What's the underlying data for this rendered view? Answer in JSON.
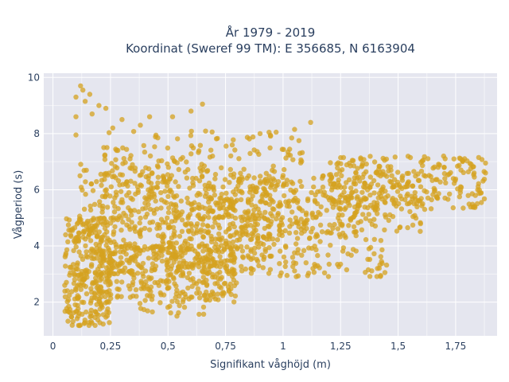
{
  "chart_data": {
    "type": "scatter",
    "title_lines": [
      "År 1979 - 2019",
      "Koordinat (Sweref 99 TM): E 356685, N 6163904"
    ],
    "xlabel": "Signifikant våghöjd (m)",
    "ylabel": "Vågperiod (s)",
    "xlim": [
      -0.04,
      1.93
    ],
    "ylim": [
      0.8,
      10.15
    ],
    "x_ticks": [
      0,
      0.25,
      0.5,
      0.75,
      1.0,
      1.25,
      1.5,
      1.75
    ],
    "x_tick_labels": [
      "0",
      "0,25",
      "0,5",
      "0,75",
      "1",
      "1,25",
      "1,5",
      "1,75"
    ],
    "y_ticks": [
      2,
      4,
      6,
      8,
      10
    ],
    "y_tick_labels": [
      "2",
      "4",
      "6",
      "8",
      "10"
    ],
    "grid": true,
    "colors": {
      "marker": "#d4a21f",
      "plot_bg": "#e5e6ef",
      "text": "#2a3f5f"
    },
    "clusters": [
      {
        "x": [
          0.05,
          0.25
        ],
        "y": [
          1.15,
          5.0
        ]
      },
      {
        "x": [
          0.1,
          0.7
        ],
        "y": [
          1.5,
          7.4
        ]
      },
      {
        "x": [
          0.2,
          0.95
        ],
        "y": [
          3.0,
          6.8
        ]
      },
      {
        "x": [
          0.2,
          1.1
        ],
        "y": [
          3.4,
          8.1
        ]
      },
      {
        "x": [
          0.2,
          0.8
        ],
        "y": [
          2.0,
          4.0
        ]
      },
      {
        "x": [
          0.5,
          1.45
        ],
        "y": [
          2.9,
          5.7
        ]
      },
      {
        "x": [
          0.7,
          1.6
        ],
        "y": [
          4.4,
          6.5
        ]
      },
      {
        "x": [
          1.2,
          1.88
        ],
        "y": [
          5.3,
          7.2
        ]
      }
    ],
    "outliers": [
      {
        "x": 0.12,
        "y": 9.7
      },
      {
        "x": 0.13,
        "y": 9.55
      },
      {
        "x": 0.16,
        "y": 9.4
      },
      {
        "x": 0.1,
        "y": 9.3
      },
      {
        "x": 0.14,
        "y": 9.15
      },
      {
        "x": 0.2,
        "y": 9.0
      },
      {
        "x": 0.17,
        "y": 8.7
      },
      {
        "x": 0.23,
        "y": 8.9
      },
      {
        "x": 0.1,
        "y": 8.6
      },
      {
        "x": 0.26,
        "y": 8.2
      },
      {
        "x": 0.3,
        "y": 8.5
      },
      {
        "x": 0.42,
        "y": 8.6
      },
      {
        "x": 0.52,
        "y": 8.6
      },
      {
        "x": 0.6,
        "y": 8.8
      },
      {
        "x": 0.65,
        "y": 9.05
      },
      {
        "x": 0.38,
        "y": 8.3
      },
      {
        "x": 1.12,
        "y": 8.4
      },
      {
        "x": 1.05,
        "y": 8.15
      },
      {
        "x": 0.97,
        "y": 8.05
      },
      {
        "x": 0.9,
        "y": 8.0
      },
      {
        "x": 0.1,
        "y": 7.95
      },
      {
        "x": 1.85,
        "y": 7.15
      },
      {
        "x": 1.78,
        "y": 7.05
      },
      {
        "x": 1.88,
        "y": 6.95
      },
      {
        "x": 1.83,
        "y": 6.6
      },
      {
        "x": 1.88,
        "y": 6.6
      },
      {
        "x": 1.7,
        "y": 6.8
      },
      {
        "x": 1.74,
        "y": 6.4
      },
      {
        "x": 1.15,
        "y": 3.3
      },
      {
        "x": 1.13,
        "y": 3.2
      },
      {
        "x": 1.2,
        "y": 3.35
      },
      {
        "x": 1.25,
        "y": 3.35
      },
      {
        "x": 1.1,
        "y": 3.4
      }
    ]
  }
}
